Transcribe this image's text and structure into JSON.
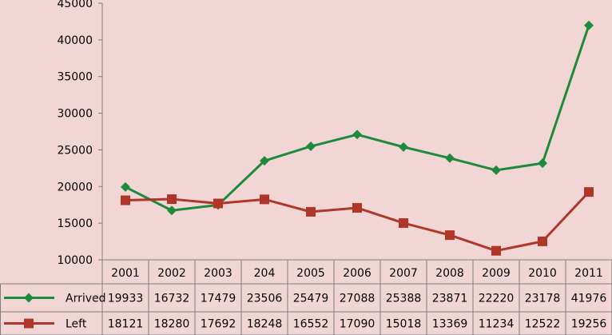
{
  "chart_data": {
    "type": "line",
    "categories": [
      "2001",
      "2002",
      "2003",
      "204",
      "2005",
      "2006",
      "2007",
      "2008",
      "2009",
      "2010",
      "2011"
    ],
    "ylim": [
      10000,
      45000
    ],
    "y_ticks": [
      10000,
      15000,
      20000,
      25000,
      30000,
      35000,
      40000,
      45000
    ],
    "y_tick_labels": [
      "10000",
      "15000",
      "20000",
      "25000",
      "30000",
      "35000",
      "40000",
      "45000"
    ],
    "grid": false,
    "legend": "data-table-left",
    "series": [
      {
        "name": "Arrived",
        "color": "#1e8a3c",
        "marker": "diamond",
        "values": [
          19933,
          16732,
          17479,
          23506,
          25479,
          27088,
          25388,
          23871,
          22220,
          23178,
          41976
        ],
        "labels": [
          "19933",
          "16732",
          "17479",
          "23506",
          "25479",
          "27088",
          "25388",
          "23871",
          "22220",
          "23178",
          "41976"
        ]
      },
      {
        "name": "Left",
        "color": "#b0362a",
        "marker": "square",
        "values": [
          18121,
          18280,
          17692,
          18248,
          16552,
          17090,
          15018,
          13369,
          11234,
          12522,
          19256
        ],
        "labels": [
          "18121",
          "18280",
          "17692",
          "18248",
          "16552",
          "17090",
          "15018",
          "13369",
          "11234",
          "12522",
          "19256"
        ]
      }
    ]
  }
}
